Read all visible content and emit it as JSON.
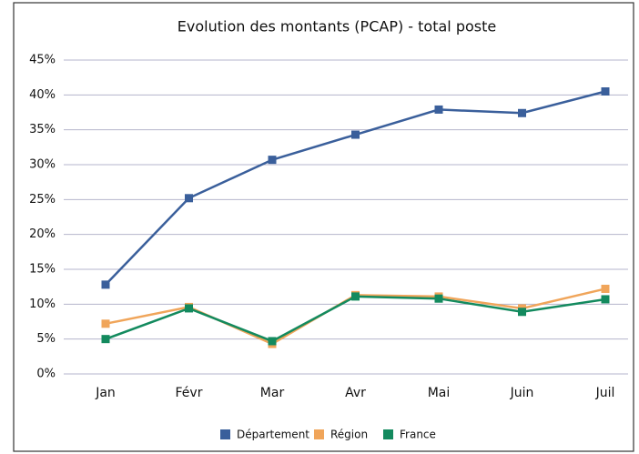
{
  "chart_data": {
    "type": "line",
    "title": "Evolution des montants (PCAP) - total poste",
    "categories": [
      "Jan",
      "Févr",
      "Mar",
      "Avr",
      "Mai",
      "Juin",
      "Juil"
    ],
    "series": [
      {
        "name": "Département",
        "color": "#3a5f9b",
        "values": [
          12.8,
          25.2,
          30.7,
          34.3,
          37.9,
          37.4,
          40.5
        ]
      },
      {
        "name": "Région",
        "color": "#f0a55a",
        "values": [
          7.2,
          9.6,
          4.3,
          11.3,
          11.1,
          9.4,
          12.2
        ]
      },
      {
        "name": "France",
        "color": "#138a5e",
        "values": [
          5.0,
          9.4,
          4.7,
          11.1,
          10.8,
          8.9,
          10.7
        ]
      }
    ],
    "ylim": [
      0,
      45
    ],
    "yticks": [
      {
        "value": 0,
        "label": "0%"
      },
      {
        "value": 5,
        "label": "5%"
      },
      {
        "value": 10,
        "label": "10%"
      },
      {
        "value": 15,
        "label": "15%"
      },
      {
        "value": 20,
        "label": "20%"
      },
      {
        "value": 25,
        "label": "25%"
      },
      {
        "value": 30,
        "label": "30%"
      },
      {
        "value": 35,
        "label": "35%"
      },
      {
        "value": 40,
        "label": "40%"
      },
      {
        "value": 45,
        "label": "45%"
      }
    ],
    "grid": true,
    "legend": "bottom"
  }
}
